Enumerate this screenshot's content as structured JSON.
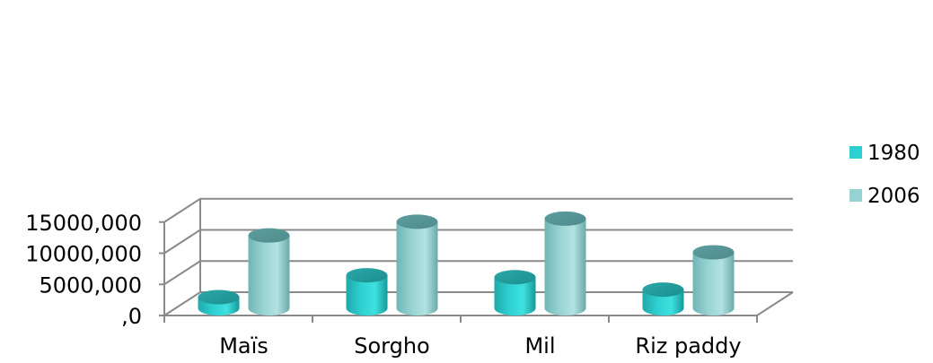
{
  "chart_data": {
    "type": "bar",
    "style": "3d-cylinder",
    "categories": [
      "Maïs",
      "Sorgho",
      "Mil",
      "Riz paddy"
    ],
    "series": [
      {
        "name": "1980",
        "values": [
          1800,
          5300,
          5000,
          3000
        ],
        "color": "#2ecfd0"
      },
      {
        "name": "2006",
        "values": [
          11700,
          13900,
          14400,
          9000
        ],
        "color": "#96d2d2"
      }
    ],
    "y_tick_labels": [
      ",0",
      "5000,000",
      "10000,000",
      "15000,000"
    ],
    "ylim": [
      0,
      15000
    ],
    "grid": true,
    "legend": "right"
  }
}
